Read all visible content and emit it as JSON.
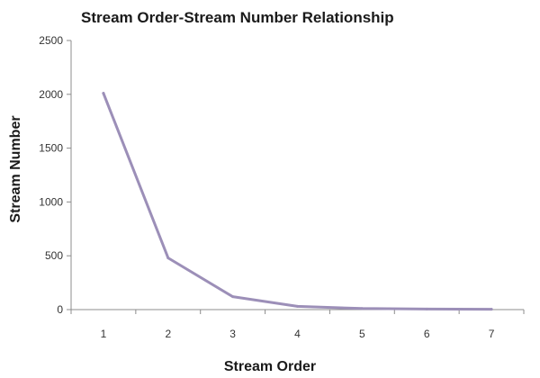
{
  "chart_data": {
    "type": "line",
    "title": "Stream Order-Stream Number Relationship",
    "xlabel": "Stream Order",
    "ylabel": "Stream Number",
    "categories": [
      "1",
      "2",
      "3",
      "4",
      "5",
      "6",
      "7"
    ],
    "series": [
      {
        "values": [
          2010,
          480,
          120,
          30,
          10,
          5,
          3
        ]
      }
    ],
    "ylim": [
      0,
      2500
    ],
    "yticks": [
      0,
      500,
      1000,
      1500,
      2000,
      2500
    ],
    "grid": false,
    "legend": "none",
    "colors": {
      "line": "#9c8fb8",
      "axis": "#8c8c8c"
    }
  }
}
